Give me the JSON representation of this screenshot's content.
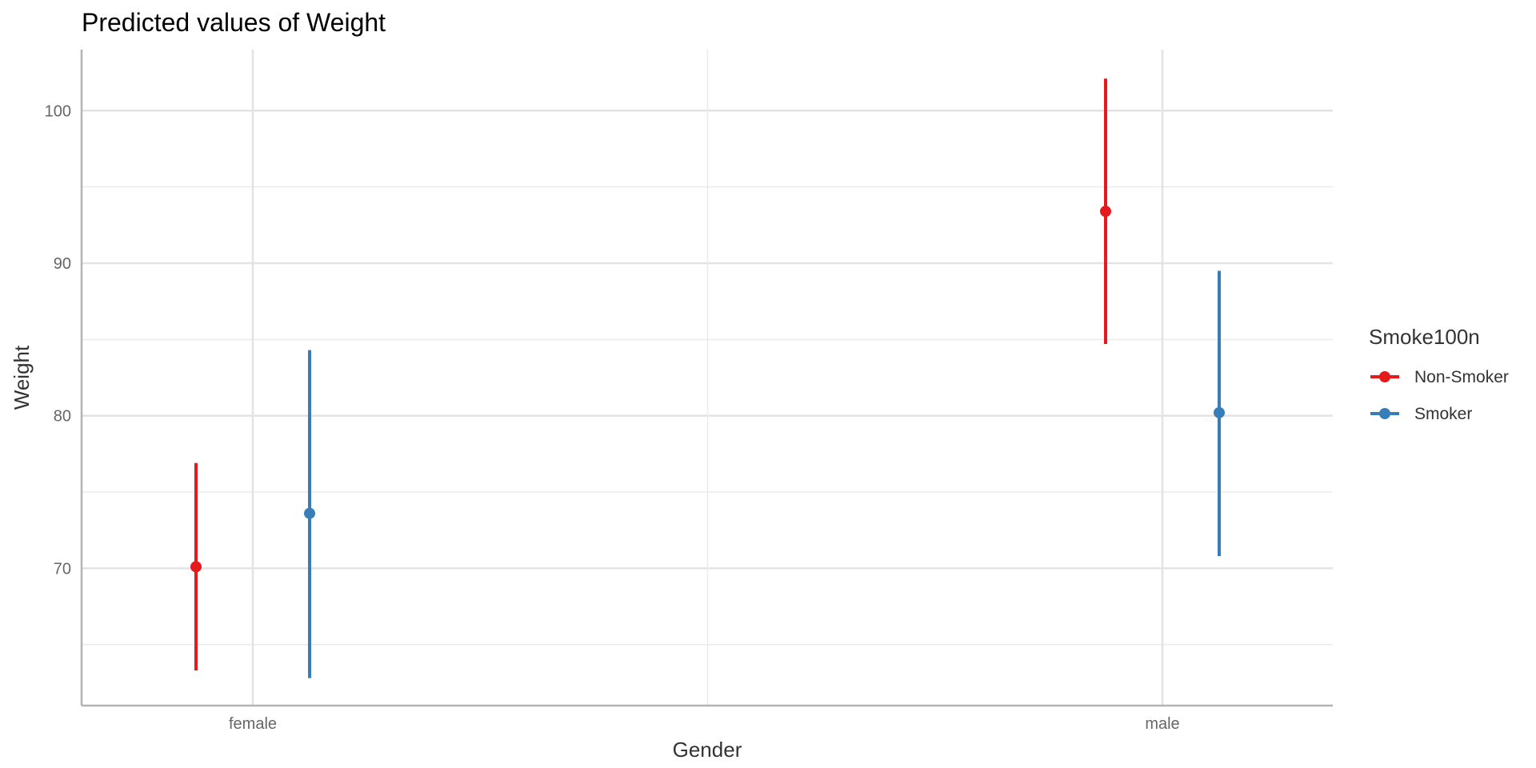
{
  "chart_data": {
    "type": "scatter",
    "title": "Predicted values of Weight",
    "xlabel": "Gender",
    "ylabel": "Weight",
    "categories": [
      "female",
      "male"
    ],
    "ylim": [
      61,
      104
    ],
    "yticks": [
      70,
      80,
      90,
      100
    ],
    "grid": true,
    "legend": {
      "title": "Smoke100n",
      "position": "right"
    },
    "series": [
      {
        "name": "Non-Smoker",
        "color": "#e41a1c",
        "values": [
          70.1,
          93.4
        ],
        "lower": [
          63.3,
          84.7
        ],
        "upper": [
          76.9,
          102.1
        ]
      },
      {
        "name": "Smoker",
        "color": "#377eb8",
        "values": [
          73.6,
          80.2
        ],
        "lower": [
          62.8,
          70.8
        ],
        "upper": [
          84.3,
          89.5
        ]
      }
    ]
  }
}
